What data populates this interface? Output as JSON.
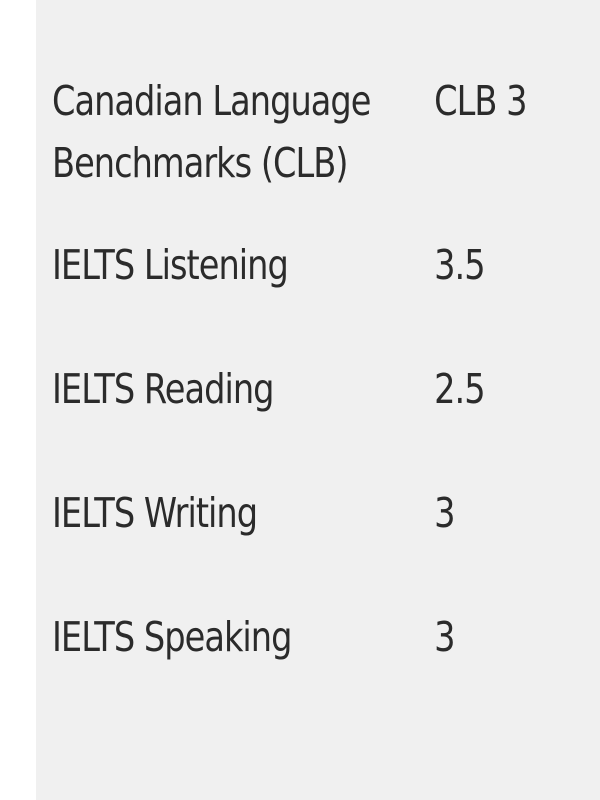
{
  "rows": [
    {
      "label": "Canadian Language Benchmarks (CLB)",
      "label_line1": "Canadian Language",
      "label_line2": "Benchmarks (CLB)",
      "value": "CLB 3"
    },
    {
      "label": "IELTS Listening",
      "value": "3.5"
    },
    {
      "label": "IELTS Reading",
      "value": "2.5"
    },
    {
      "label": "IELTS Writing",
      "value": "3"
    },
    {
      "label": "IELTS Speaking",
      "value": "3"
    }
  ]
}
